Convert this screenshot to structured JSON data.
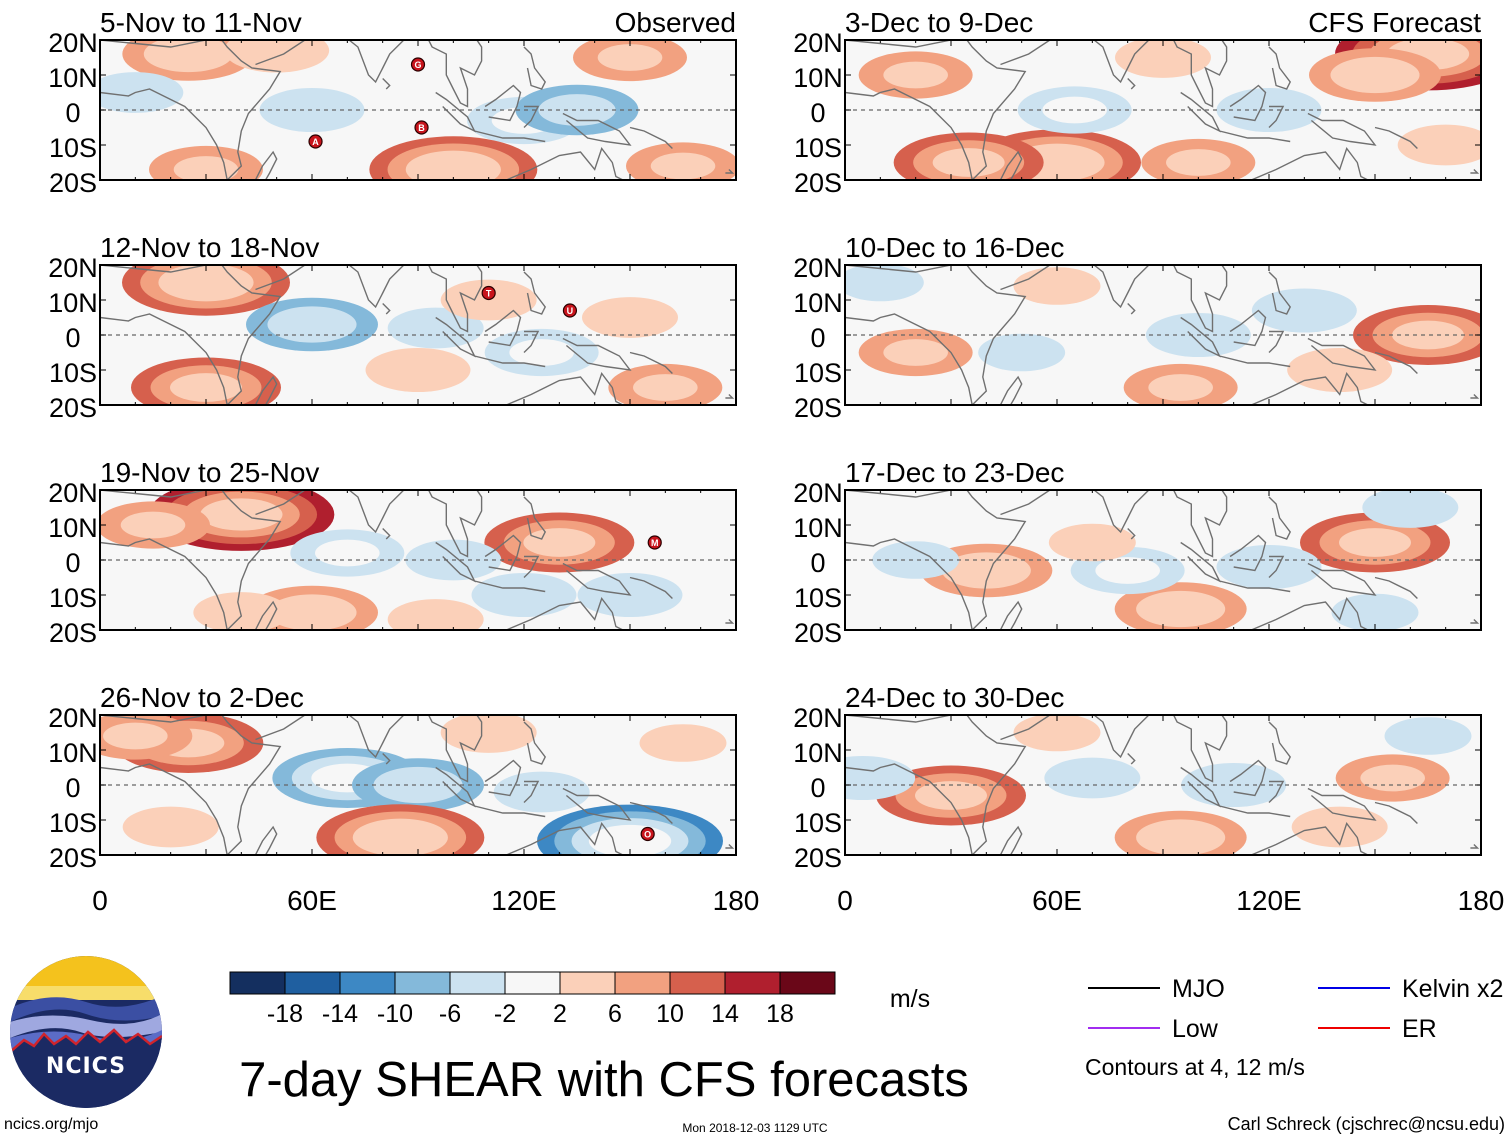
{
  "figure": {
    "title": "7-day SHEAR with CFS forecasts",
    "observed_label": "Observed",
    "forecast_label": "CFS Forecast",
    "website": "ncics.org/mjo",
    "timestamp": "Mon 2018-12-03 1129 UTC",
    "credit": "Carl Schreck (cjschrec@ncsu.edu)",
    "logo_text": "NCICS"
  },
  "chart_data": {
    "type": "heatmap",
    "variable": "7-day shear anomaly",
    "units": "m/s",
    "x_axis": {
      "range": [
        0,
        180
      ],
      "ticks": [
        0,
        60,
        120,
        180
      ],
      "tick_labels": [
        "0",
        "60E",
        "120E",
        "180"
      ]
    },
    "y_axis": {
      "range": [
        -20,
        20
      ],
      "ticks": [
        20,
        10,
        0,
        -10,
        -20
      ],
      "tick_labels": [
        "20N",
        "10N",
        "0",
        "10S",
        "20S"
      ]
    },
    "panels_observed": [
      {
        "period": "5-Nov to 11-Nov",
        "storms": [
          {
            "label": "G",
            "lon": 90,
            "lat": 13
          },
          {
            "label": "A",
            "lon": 61,
            "lat": -9
          },
          {
            "label": "B",
            "lon": 91,
            "lat": -5
          }
        ],
        "anomalies": [
          {
            "lon": 25,
            "lat": 16,
            "value": 8
          },
          {
            "lon": 50,
            "lat": 17,
            "value": 5
          },
          {
            "lon": 150,
            "lat": 15,
            "value": 6
          },
          {
            "lon": 120,
            "lat": -3,
            "value": -6
          },
          {
            "lon": 135,
            "lat": 0,
            "value": -7
          },
          {
            "lon": 60,
            "lat": 0,
            "value": -5
          },
          {
            "lon": 100,
            "lat": -17,
            "value": 12
          },
          {
            "lon": 30,
            "lat": -17,
            "value": 6
          },
          {
            "lon": 165,
            "lat": -16,
            "value": 6
          },
          {
            "lon": 10,
            "lat": 5,
            "value": -4
          }
        ]
      },
      {
        "period": "12-Nov to 18-Nov",
        "storms": [
          {
            "label": "T",
            "lon": 110,
            "lat": 12
          },
          {
            "label": "U",
            "lon": 133,
            "lat": 7
          }
        ],
        "anomalies": [
          {
            "lon": 30,
            "lat": 15,
            "value": 12
          },
          {
            "lon": 60,
            "lat": 3,
            "value": -8
          },
          {
            "lon": 95,
            "lat": 2,
            "value": -4
          },
          {
            "lon": 125,
            "lat": -5,
            "value": -6
          },
          {
            "lon": 30,
            "lat": -15,
            "value": 10
          },
          {
            "lon": 90,
            "lat": -10,
            "value": 5
          },
          {
            "lon": 160,
            "lat": -15,
            "value": 6
          },
          {
            "lon": 150,
            "lat": 5,
            "value": 4
          },
          {
            "lon": 110,
            "lat": 10,
            "value": 4
          }
        ]
      },
      {
        "period": "19-Nov to 25-Nov",
        "storms": [
          {
            "label": "M",
            "lon": 157,
            "lat": 5
          }
        ],
        "anomalies": [
          {
            "lon": 40,
            "lat": 13,
            "value": 14
          },
          {
            "lon": 15,
            "lat": 10,
            "value": 6
          },
          {
            "lon": 130,
            "lat": 5,
            "value": 10
          },
          {
            "lon": 70,
            "lat": 2,
            "value": -6
          },
          {
            "lon": 100,
            "lat": 0,
            "value": -4
          },
          {
            "lon": 60,
            "lat": -15,
            "value": 8
          },
          {
            "lon": 40,
            "lat": -15,
            "value": 4
          },
          {
            "lon": 150,
            "lat": -10,
            "value": -5
          },
          {
            "lon": 120,
            "lat": -10,
            "value": -5
          },
          {
            "lon": 95,
            "lat": -17,
            "value": 4
          }
        ]
      },
      {
        "period": "26-Nov to 2-Dec",
        "storms": [
          {
            "label": "O",
            "lon": 155,
            "lat": -14
          }
        ],
        "anomalies": [
          {
            "lon": 25,
            "lat": 12,
            "value": 10
          },
          {
            "lon": 10,
            "lat": 14,
            "value": 6
          },
          {
            "lon": 70,
            "lat": 2,
            "value": -10
          },
          {
            "lon": 90,
            "lat": 0,
            "value": -8
          },
          {
            "lon": 85,
            "lat": -15,
            "value": 12
          },
          {
            "lon": 150,
            "lat": -16,
            "value": -14
          },
          {
            "lon": 125,
            "lat": -2,
            "value": -4
          },
          {
            "lon": 110,
            "lat": 15,
            "value": 4
          },
          {
            "lon": 20,
            "lat": -12,
            "value": 4
          },
          {
            "lon": 165,
            "lat": 12,
            "value": 3
          }
        ]
      }
    ],
    "panels_forecast": [
      {
        "period": "3-Dec to 9-Dec",
        "anomalies": [
          {
            "lon": 165,
            "lat": 16,
            "value": 14
          },
          {
            "lon": 150,
            "lat": 10,
            "value": 8
          },
          {
            "lon": 20,
            "lat": 10,
            "value": 6
          },
          {
            "lon": 60,
            "lat": -15,
            "value": 12
          },
          {
            "lon": 35,
            "lat": -15,
            "value": 10
          },
          {
            "lon": 100,
            "lat": -15,
            "value": 6
          },
          {
            "lon": 65,
            "lat": 0,
            "value": -6
          },
          {
            "lon": 120,
            "lat": 0,
            "value": -5
          },
          {
            "lon": 170,
            "lat": -10,
            "value": 4
          },
          {
            "lon": 90,
            "lat": 15,
            "value": 4
          }
        ]
      },
      {
        "period": "10-Dec to 16-Dec",
        "anomalies": [
          {
            "lon": 165,
            "lat": 0,
            "value": 10
          },
          {
            "lon": 130,
            "lat": 7,
            "value": -5
          },
          {
            "lon": 100,
            "lat": 0,
            "value": -5
          },
          {
            "lon": 20,
            "lat": -5,
            "value": 6
          },
          {
            "lon": 95,
            "lat": -15,
            "value": 6
          },
          {
            "lon": 140,
            "lat": -10,
            "value": 5
          },
          {
            "lon": 50,
            "lat": -5,
            "value": -3
          },
          {
            "lon": 10,
            "lat": 15,
            "value": -3
          },
          {
            "lon": 60,
            "lat": 14,
            "value": 3
          }
        ]
      },
      {
        "period": "17-Dec to 23-Dec",
        "anomalies": [
          {
            "lon": 150,
            "lat": 5,
            "value": 10
          },
          {
            "lon": 40,
            "lat": -3,
            "value": 8
          },
          {
            "lon": 95,
            "lat": -14,
            "value": 8
          },
          {
            "lon": 120,
            "lat": -2,
            "value": -5
          },
          {
            "lon": 80,
            "lat": -3,
            "value": -6
          },
          {
            "lon": 70,
            "lat": 5,
            "value": 3
          },
          {
            "lon": 160,
            "lat": 15,
            "value": -4
          },
          {
            "lon": 20,
            "lat": 0,
            "value": -3
          },
          {
            "lon": 150,
            "lat": -15,
            "value": -3
          }
        ]
      },
      {
        "period": "24-Dec to 30-Dec",
        "anomalies": [
          {
            "lon": 30,
            "lat": -3,
            "value": 10
          },
          {
            "lon": 95,
            "lat": -15,
            "value": 8
          },
          {
            "lon": 155,
            "lat": 2,
            "value": 6
          },
          {
            "lon": 110,
            "lat": 0,
            "value": -5
          },
          {
            "lon": 70,
            "lat": 2,
            "value": -4
          },
          {
            "lon": 5,
            "lat": 2,
            "value": -5
          },
          {
            "lon": 140,
            "lat": -12,
            "value": 4
          },
          {
            "lon": 60,
            "lat": 15,
            "value": 3
          },
          {
            "lon": 165,
            "lat": 14,
            "value": -3
          }
        ]
      }
    ],
    "colorbar": {
      "labels": [
        "-18",
        "-14",
        "-10",
        "-6",
        "-2",
        "2",
        "6",
        "10",
        "14",
        "18"
      ],
      "colors": [
        "#142f5f",
        "#1f5fa0",
        "#3d88c4",
        "#84b9da",
        "#cce2f0",
        "#f7f7f7",
        "#fbd0b9",
        "#f2a180",
        "#d6604d",
        "#b01f2e",
        "#6a0718"
      ],
      "units": "m/s"
    },
    "legend": {
      "items": [
        {
          "name": "MJO",
          "color": "#000000"
        },
        {
          "name": "Kelvin x2",
          "color": "#0000e6"
        },
        {
          "name": "Low",
          "color": "#a12cf0"
        },
        {
          "name": "ER",
          "color": "#ee0000"
        }
      ],
      "note": "Contours at 4, 12 m/s"
    },
    "map_line_color": "#707070"
  }
}
